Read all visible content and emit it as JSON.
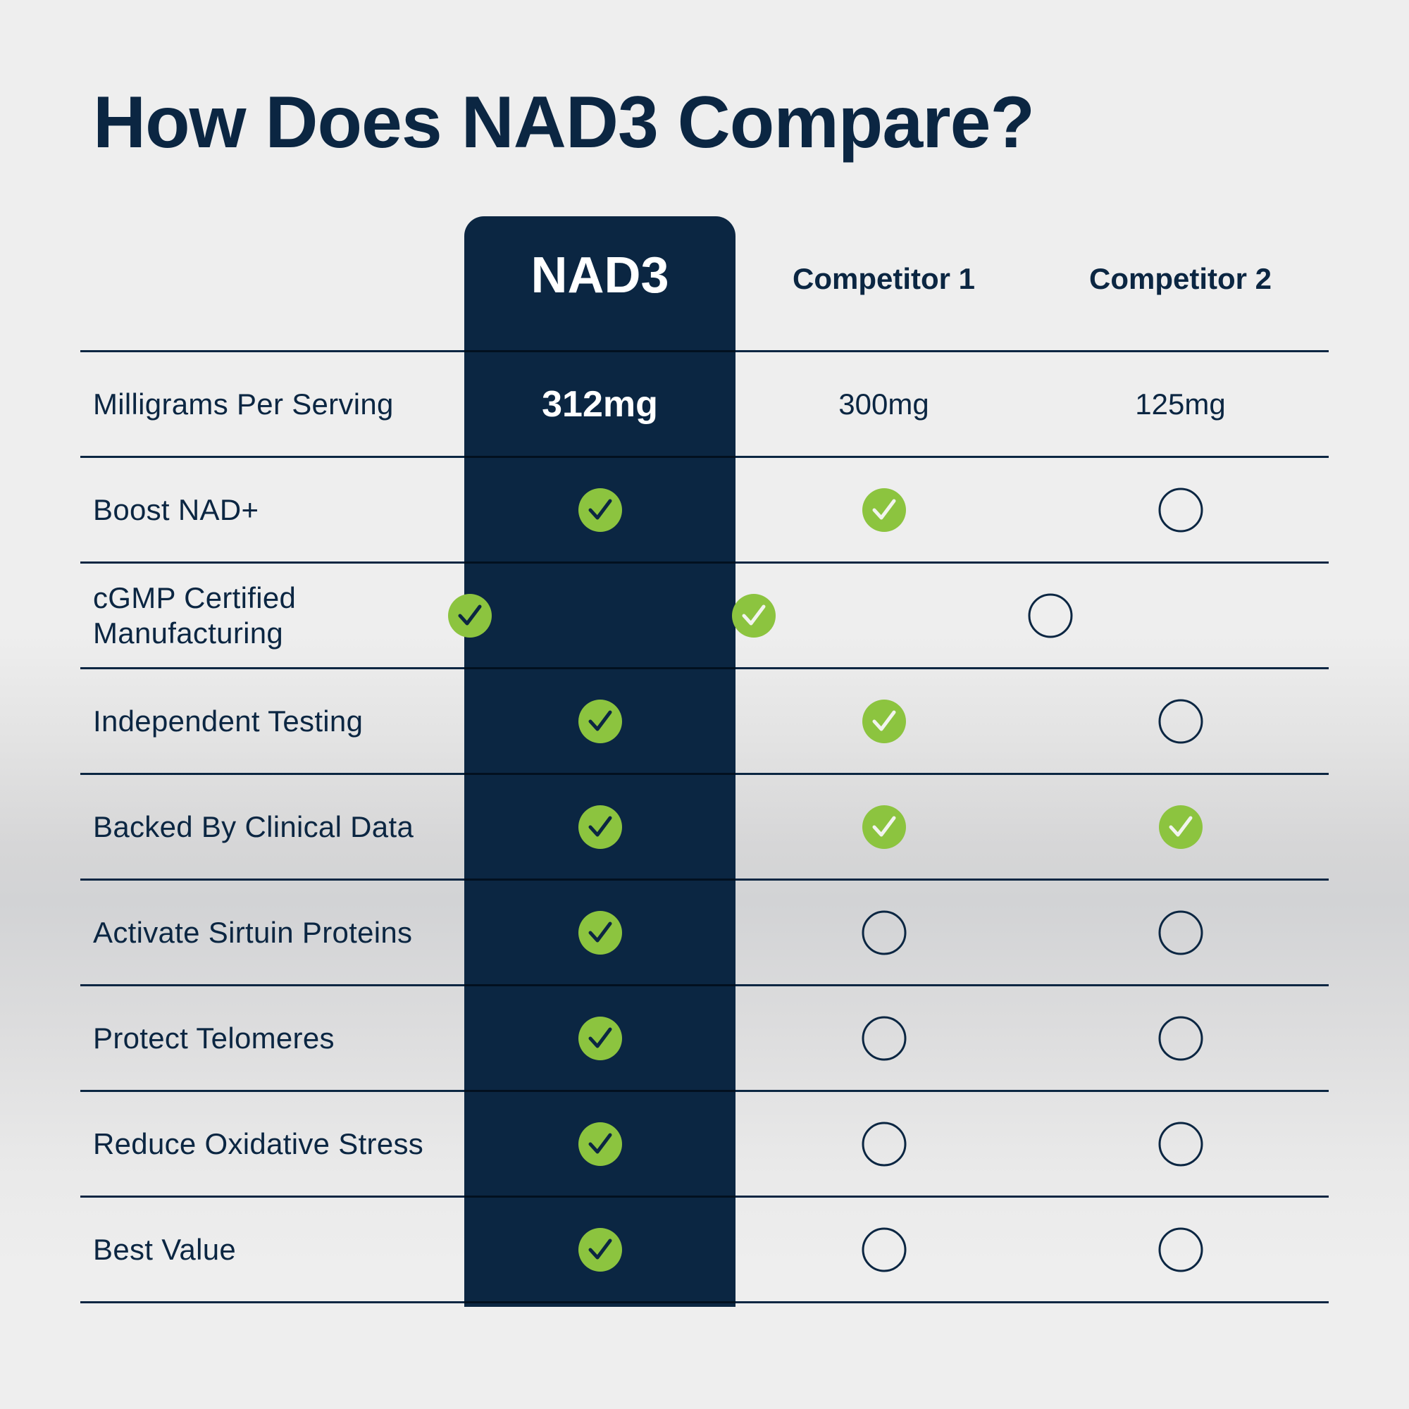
{
  "title": "How Does NAD3 Compare?",
  "colors": {
    "navy": "#0b2642",
    "green": "#8cc43f",
    "background": "#eeeeee"
  },
  "columns": {
    "feature": "",
    "nad3": "NAD3",
    "competitor1": "Competitor 1",
    "competitor2": "Competitor 2"
  },
  "rows": [
    {
      "feature": "Milligrams Per Serving",
      "nad3": "312mg",
      "competitor1": "300mg",
      "competitor2": "125mg"
    },
    {
      "feature": "Boost NAD+",
      "nad3": "check-icon",
      "competitor1": "check-icon",
      "competitor2": "empty-circle-icon"
    },
    {
      "feature": "cGMP Certified Manufacturing",
      "nad3": "check-icon",
      "competitor1": "check-icon",
      "competitor2": "empty-circle-icon"
    },
    {
      "feature": "Independent Testing",
      "nad3": "check-icon",
      "competitor1": "check-icon",
      "competitor2": "empty-circle-icon"
    },
    {
      "feature": "Backed By Clinical Data",
      "nad3": "check-icon",
      "competitor1": "check-icon",
      "competitor2": "check-icon"
    },
    {
      "feature": "Activate Sirtuin Proteins",
      "nad3": "check-icon",
      "competitor1": "empty-circle-icon",
      "competitor2": "empty-circle-icon"
    },
    {
      "feature": "Protect Telomeres",
      "nad3": "check-icon",
      "competitor1": "empty-circle-icon",
      "competitor2": "empty-circle-icon"
    },
    {
      "feature": "Reduce Oxidative Stress",
      "nad3": "check-icon",
      "competitor1": "empty-circle-icon",
      "competitor2": "empty-circle-icon"
    },
    {
      "feature": "Best Value",
      "nad3": "check-icon",
      "competitor1": "empty-circle-icon",
      "competitor2": "empty-circle-icon"
    }
  ]
}
